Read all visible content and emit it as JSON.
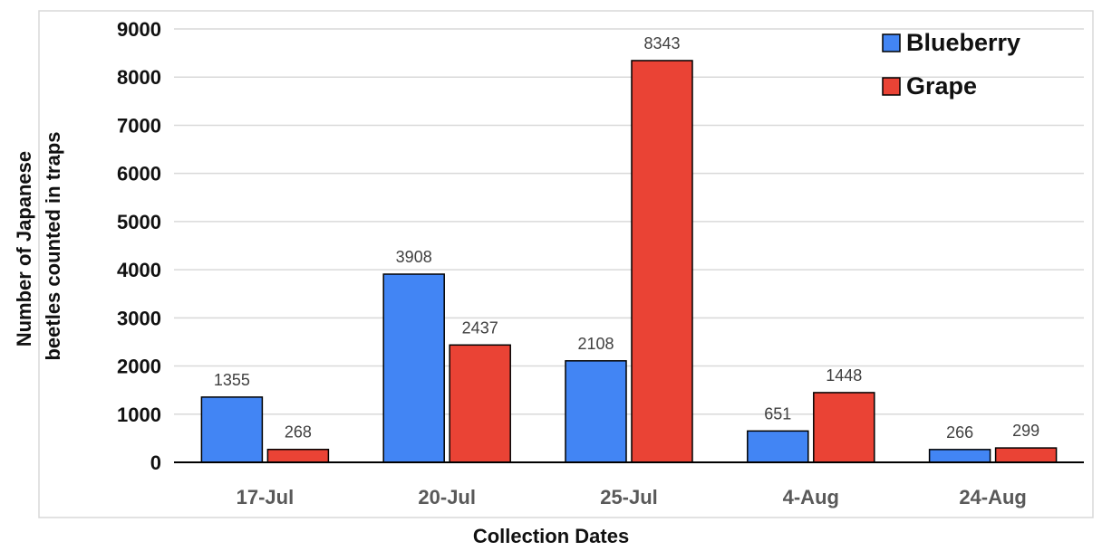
{
  "chart_data": {
    "type": "bar",
    "categories": [
      "17-Jul",
      "20-Jul",
      "25-Jul",
      "4-Aug",
      "24-Aug"
    ],
    "series": [
      {
        "name": "Blueberry",
        "color": "#4285f4",
        "values": [
          1355,
          3908,
          2108,
          651,
          266
        ]
      },
      {
        "name": "Grape",
        "color": "#ea4335",
        "values": [
          268,
          2437,
          8343,
          1448,
          299
        ]
      }
    ],
    "title": "",
    "xlabel": "Collection Dates",
    "ylabel": [
      "Number of Japanese",
      "beetles counted in traps"
    ],
    "ylim": [
      0,
      9000
    ],
    "yticks": [
      0,
      1000,
      2000,
      3000,
      4000,
      5000,
      6000,
      7000,
      8000,
      9000
    ],
    "grid": true,
    "legend_position": "top-right",
    "data_labels": true
  }
}
